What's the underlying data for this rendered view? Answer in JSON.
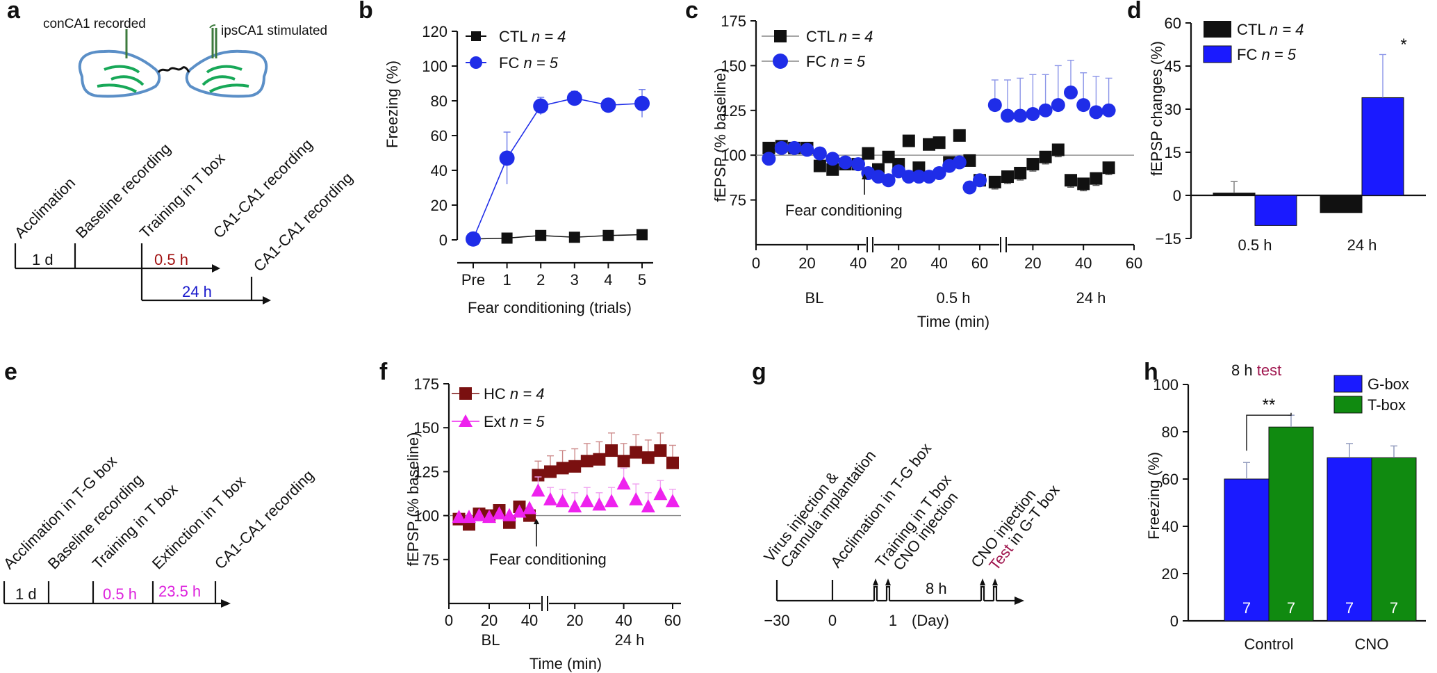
{
  "colors": {
    "black": "#111111",
    "blue_fill": "#1a1aff",
    "blue_marker": "#1f2de8",
    "green": "#108a10",
    "hc": "#7a1010",
    "ext": "#ee22ee",
    "brain_outline": "#5b8fc7",
    "brain_inner": "#18a858",
    "electrode": "#3c7a3c",
    "dark_red_text": "#a01010",
    "blue_text": "#1a1acc",
    "magenta_text": "#dd22dd",
    "test_text": "#a0174f"
  },
  "panel_letters": [
    "a",
    "b",
    "c",
    "d",
    "e",
    "f",
    "g",
    "h"
  ],
  "a": {
    "brain_labels": [
      "conCA1 recorded",
      "ipsCA1 stimulated"
    ],
    "steps": [
      "Acclimation",
      "Baseline recording",
      "Training in T box",
      "CA1-CA1 recording",
      "CA1-CA1 recording"
    ],
    "intervals": [
      "1 d",
      "0.5 h",
      "24 h"
    ]
  },
  "e": {
    "steps": [
      "Acclimation in T-G box",
      "Baseline recording",
      "Training in T box",
      "Extinction in T box",
      "CA1-CA1 recording"
    ],
    "intervals": [
      "1 d",
      "0.5 h",
      "23.5 h"
    ]
  },
  "g": {
    "steps": [
      "Virus injection &",
      "Cannula implantation",
      "Acclimation in T-G box",
      "Training in T box",
      "CNO injection",
      "CNO injection"
    ],
    "test_prefix": "Test",
    "test_suffix": " in G-T box",
    "interval": "8 h",
    "ticks": [
      "−30",
      "0",
      "1"
    ],
    "unit": "(Day)"
  },
  "chart_data": [
    {
      "panel": "b",
      "type": "line",
      "xlabel": "Fear conditioning (trials)",
      "ylabel": "Freezing (%)",
      "ylim": [
        0,
        120
      ],
      "yticks": [
        "0",
        "20",
        "40",
        "60",
        "80",
        "100",
        "120"
      ],
      "categories": [
        "Pre",
        "1",
        "2",
        "3",
        "4",
        "5"
      ],
      "series": [
        {
          "name": "CTL",
          "n_label": "n = 4",
          "values": [
            0.5,
            1,
            2.5,
            1.5,
            2.5,
            3
          ],
          "err": [
            1,
            1.5,
            2,
            1.5,
            1.5,
            2
          ]
        },
        {
          "name": "FC",
          "n_label": "n = 5",
          "values": [
            0.5,
            47,
            77,
            81.5,
            77.5,
            78.5
          ],
          "err": [
            1,
            15,
            5,
            4,
            2,
            8
          ]
        }
      ]
    },
    {
      "panel": "c",
      "type": "scatter",
      "xlabel": "Time (min)",
      "ylabel": "fEPSP (% baseline)",
      "ylim": [
        50,
        175
      ],
      "yticks": [
        "75",
        "100",
        "125",
        "150",
        "175"
      ],
      "baseline": 100,
      "segments": [
        {
          "name": "BL",
          "ticks": [
            "0",
            "20",
            "40"
          ]
        },
        {
          "name": "0.5 h",
          "ticks": [
            "20",
            "40",
            "60"
          ]
        },
        {
          "name": "24 h",
          "ticks": [
            "20",
            "40",
            "60"
          ]
        }
      ],
      "annotation": "Fear conditioning",
      "series": [
        {
          "name": "CTL",
          "n_label": "n = 4",
          "x_bl": [
            5,
            10,
            15,
            20,
            25,
            30,
            35,
            40
          ],
          "y_bl": [
            104,
            105,
            104,
            104,
            94,
            92,
            95,
            95
          ],
          "x_h05": [
            5,
            10,
            15,
            20,
            25,
            30,
            35,
            40,
            45,
            50,
            55,
            60
          ],
          "y_h05": [
            101,
            92,
            99,
            95,
            108,
            93,
            106,
            107,
            96,
            111,
            97,
            86
          ],
          "x_h24": [
            5,
            10,
            15,
            20,
            25,
            30,
            35,
            40,
            45,
            50
          ],
          "y_h24": [
            85,
            88,
            90,
            95,
            99,
            103,
            86,
            84,
            87,
            93
          ]
        },
        {
          "name": "FC",
          "n_label": "n = 5",
          "x_bl": [
            5,
            10,
            15,
            20,
            25,
            30,
            35,
            40
          ],
          "y_bl": [
            98,
            104,
            104,
            103,
            101,
            98,
            96,
            95
          ],
          "x_h05": [
            5,
            10,
            15,
            20,
            25,
            30,
            35,
            40,
            45,
            50,
            55,
            60
          ],
          "y_h05": [
            90,
            88,
            86,
            91,
            88,
            88,
            88,
            90,
            94,
            96,
            82,
            86
          ],
          "x_h24": [
            5,
            10,
            15,
            20,
            25,
            30,
            35,
            40,
            45,
            50
          ],
          "y_h24": [
            128,
            122,
            122,
            123,
            125,
            128,
            135,
            128,
            124,
            125
          ],
          "err_h24": [
            14,
            20,
            21,
            22,
            20,
            22,
            18,
            18,
            20,
            18
          ]
        }
      ]
    },
    {
      "panel": "d",
      "type": "bar",
      "ylabel": "fEPSP changes (%)",
      "ylim": [
        -15,
        60
      ],
      "yticks": [
        "−15",
        "0",
        "15",
        "30",
        "45",
        "60"
      ],
      "categories": [
        "0.5 h",
        "24 h"
      ],
      "series": [
        {
          "name": "CTL",
          "n_label": "n = 4",
          "values": [
            0.8,
            -6
          ],
          "err": [
            4,
            0
          ]
        },
        {
          "name": "FC",
          "n_label": "n = 5",
          "values": [
            -10.5,
            34
          ],
          "err": [
            0,
            15
          ]
        }
      ],
      "annotation": "*"
    },
    {
      "panel": "f",
      "type": "scatter",
      "xlabel": "Time (min)",
      "ylabel": "fEPSP (% baseline)",
      "ylim": [
        50,
        175
      ],
      "yticks": [
        "75",
        "100",
        "125",
        "150",
        "175"
      ],
      "baseline": 100,
      "segments": [
        {
          "name": "BL",
          "ticks": [
            "0",
            "20",
            "40"
          ]
        },
        {
          "name": "24 h",
          "ticks": [
            "20",
            "40",
            "60"
          ]
        }
      ],
      "annotation": "Fear conditioning",
      "series": [
        {
          "name": "HC",
          "n_label": "n = 4",
          "x_bl": [
            5,
            10,
            15,
            20,
            25,
            30,
            35,
            40
          ],
          "y_bl": [
            98,
            95,
            101,
            100,
            103,
            96,
            105,
            100
          ],
          "x_h24": [
            5,
            10,
            15,
            20,
            25,
            30,
            35,
            40,
            45,
            50,
            55,
            60
          ],
          "y_h24": [
            123,
            125,
            127,
            128,
            131,
            132,
            137,
            131,
            136,
            133,
            137,
            130
          ],
          "err_h24": [
            8,
            9,
            10,
            10,
            10,
            10,
            10,
            10,
            10,
            10,
            10,
            10
          ]
        },
        {
          "name": "Ext",
          "n_label": "n = 5",
          "x_bl": [
            5,
            10,
            15,
            20,
            25,
            30,
            35,
            40
          ],
          "y_bl": [
            99,
            99,
            100,
            99,
            101,
            100,
            102,
            104
          ],
          "x_h24": [
            5,
            10,
            15,
            20,
            25,
            30,
            35,
            40,
            45,
            50,
            55,
            60
          ],
          "y_h24": [
            114,
            109,
            108,
            105,
            108,
            106,
            108,
            118,
            109,
            105,
            112,
            108
          ],
          "err_h24": [
            8,
            7,
            7,
            8,
            8,
            7,
            8,
            9,
            9,
            8,
            8,
            7
          ]
        }
      ]
    },
    {
      "panel": "h",
      "type": "bar",
      "title_prefix": "8 h",
      "title_highlight": "test",
      "ylabel": "Freezing (%)",
      "ylim": [
        0,
        100
      ],
      "yticks": [
        "0",
        "20",
        "40",
        "60",
        "80",
        "100"
      ],
      "categories": [
        "Control",
        "CNO"
      ],
      "series": [
        {
          "name": "G-box",
          "values": [
            60,
            69
          ],
          "err": [
            7,
            6
          ],
          "n": [
            "7",
            "7"
          ]
        },
        {
          "name": "T-box",
          "values": [
            82,
            69
          ],
          "err": [
            5,
            5
          ],
          "n": [
            "7",
            "7"
          ]
        }
      ],
      "annotation": "**"
    }
  ]
}
